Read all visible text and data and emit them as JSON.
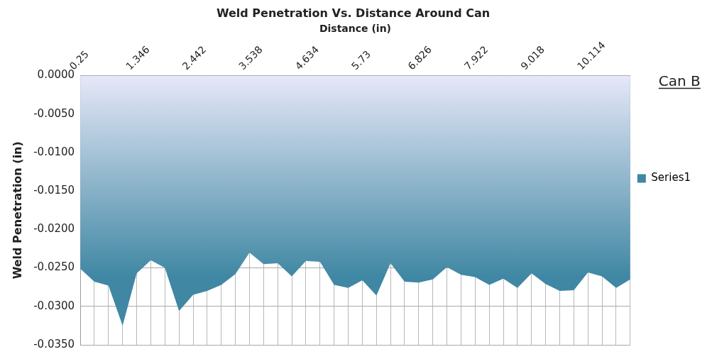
{
  "chart_data": {
    "type": "area",
    "title": "Weld Penetration Vs. Distance Around Can",
    "xlabel": "Distance (in)",
    "ylabel": "Weld Penetration (in)",
    "annotations": [
      "Can B"
    ],
    "categories": [
      "0.25",
      null,
      null,
      null,
      "1.346",
      null,
      null,
      null,
      "2.442",
      null,
      null,
      null,
      "3.538",
      null,
      null,
      null,
      "4.634",
      null,
      null,
      null,
      "5.73",
      null,
      null,
      null,
      "6.826",
      null,
      null,
      null,
      "7.922",
      null,
      null,
      null,
      "9.018",
      null,
      null,
      null,
      "10.114",
      null,
      null,
      null
    ],
    "series": [
      {
        "name": "Series1",
        "color": "#3f87a3",
        "values": [
          -0.0251,
          -0.0268,
          -0.0273,
          -0.0325,
          -0.0257,
          -0.024,
          -0.025,
          -0.0306,
          -0.0285,
          -0.028,
          -0.0272,
          -0.0258,
          -0.023,
          -0.0245,
          -0.0244,
          -0.0261,
          -0.0241,
          -0.0242,
          -0.0272,
          -0.0276,
          -0.0266,
          -0.0286,
          -0.0244,
          -0.0268,
          -0.0269,
          -0.0265,
          -0.0249,
          -0.0259,
          -0.0262,
          -0.0272,
          -0.0264,
          -0.0276,
          -0.0257,
          -0.0271,
          -0.028,
          -0.0279,
          -0.0256,
          -0.0261,
          -0.0276,
          -0.0265
        ]
      }
    ],
    "ylim": [
      -0.035,
      0
    ],
    "yticks": [
      {
        "value": 0,
        "label": "0.0000"
      },
      {
        "value": -0.005,
        "label": "-0.0050"
      },
      {
        "value": -0.01,
        "label": "-0.0100"
      },
      {
        "value": -0.015,
        "label": "-0.0150"
      },
      {
        "value": -0.02,
        "label": "-0.0200"
      },
      {
        "value": -0.025,
        "label": "-0.0250"
      },
      {
        "value": -0.03,
        "label": "-0.0300"
      },
      {
        "value": -0.035,
        "label": "-0.0350"
      }
    ],
    "grid": true,
    "legend": "right"
  }
}
